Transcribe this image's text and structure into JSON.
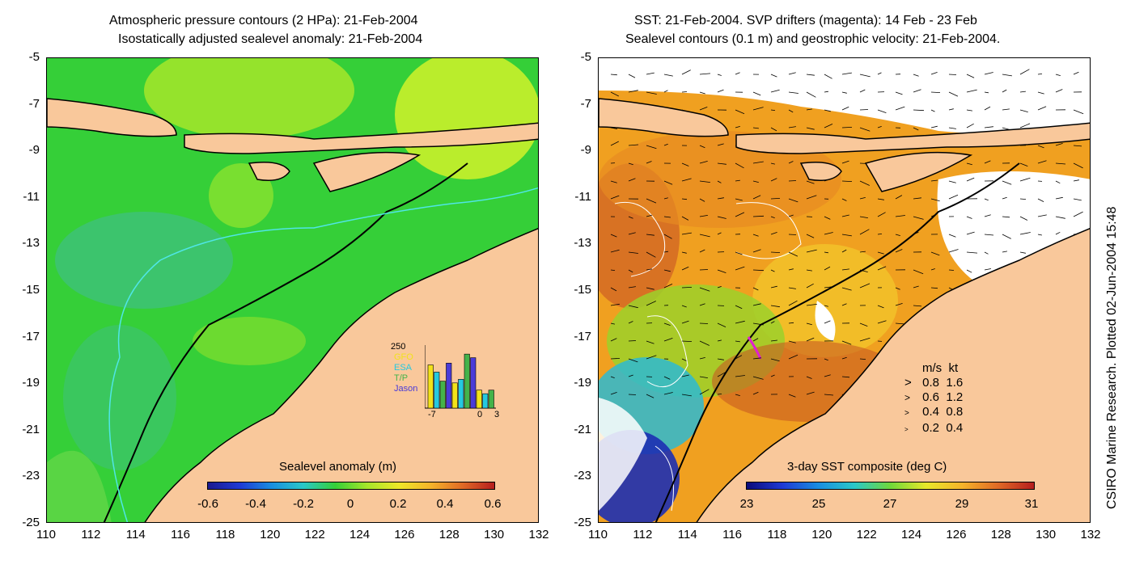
{
  "left_panel": {
    "title_line1": "Atmospheric pressure contours (2 HPa): 21-Feb-2004",
    "title_line2": "Isostatically adjusted sealevel anomaly: 21-Feb-2004",
    "colorbar_title": "Sealevel anomaly (m)",
    "colorbar_ticks": [
      "-0.6",
      "-0.4",
      "-0.2",
      "0",
      "0.2",
      "0.4",
      "0.6"
    ],
    "satellite_legend": {
      "count": "250",
      "items": [
        "GFO",
        "ESA",
        "T/P",
        "Jason"
      ],
      "colors": [
        "#f2e21a",
        "#26c9e0",
        "#44b34a",
        "#4a3bd8"
      ],
      "x_ticks": [
        "-7",
        "0",
        "3"
      ],
      "bars": [
        0.24,
        0.2,
        0.15,
        0.25,
        0.14,
        0.16,
        0.3,
        0.28,
        0.1,
        0.08,
        0.1
      ]
    }
  },
  "right_panel": {
    "title_line1": "SST: 21-Feb-2004. SVP drifters (magenta): 14 Feb - 23 Feb",
    "title_line2": "Sealevel contours (0.1 m) and geostrophic velocity: 21-Feb-2004.",
    "colorbar_title": "3-day SST composite (deg C)",
    "colorbar_ticks": [
      "23",
      "25",
      "27",
      "29",
      "31"
    ],
    "velocity_legend": {
      "header_ms": "m/s",
      "header_kt": "kt",
      "rows": [
        {
          "ms": "0.8",
          "kt": "1.6"
        },
        {
          "ms": "0.6",
          "kt": "1.2"
        },
        {
          "ms": "0.4",
          "kt": "0.8"
        },
        {
          "ms": "0.2",
          "kt": "0.4"
        }
      ]
    }
  },
  "axes": {
    "y_ticks": [
      "-5",
      "-7",
      "-9",
      "-11",
      "-13",
      "-15",
      "-17",
      "-19",
      "-21",
      "-23",
      "-25"
    ],
    "x_ticks": [
      "110",
      "112",
      "114",
      "116",
      "118",
      "120",
      "122",
      "124",
      "126",
      "128",
      "130",
      "132"
    ]
  },
  "credit": "CSIRO Marine Research. Plotted 02-Jun-2004 15:48",
  "colors": {
    "land": "#f9c89b",
    "ssh_green": "#2fd135",
    "ssh_mid": "#46c85f",
    "ssh_yellow": "#c7ee2a",
    "sst_orange": "#f0a020",
    "sst_red": "#c45020",
    "contour_cyan": "#4fe6e6"
  }
}
